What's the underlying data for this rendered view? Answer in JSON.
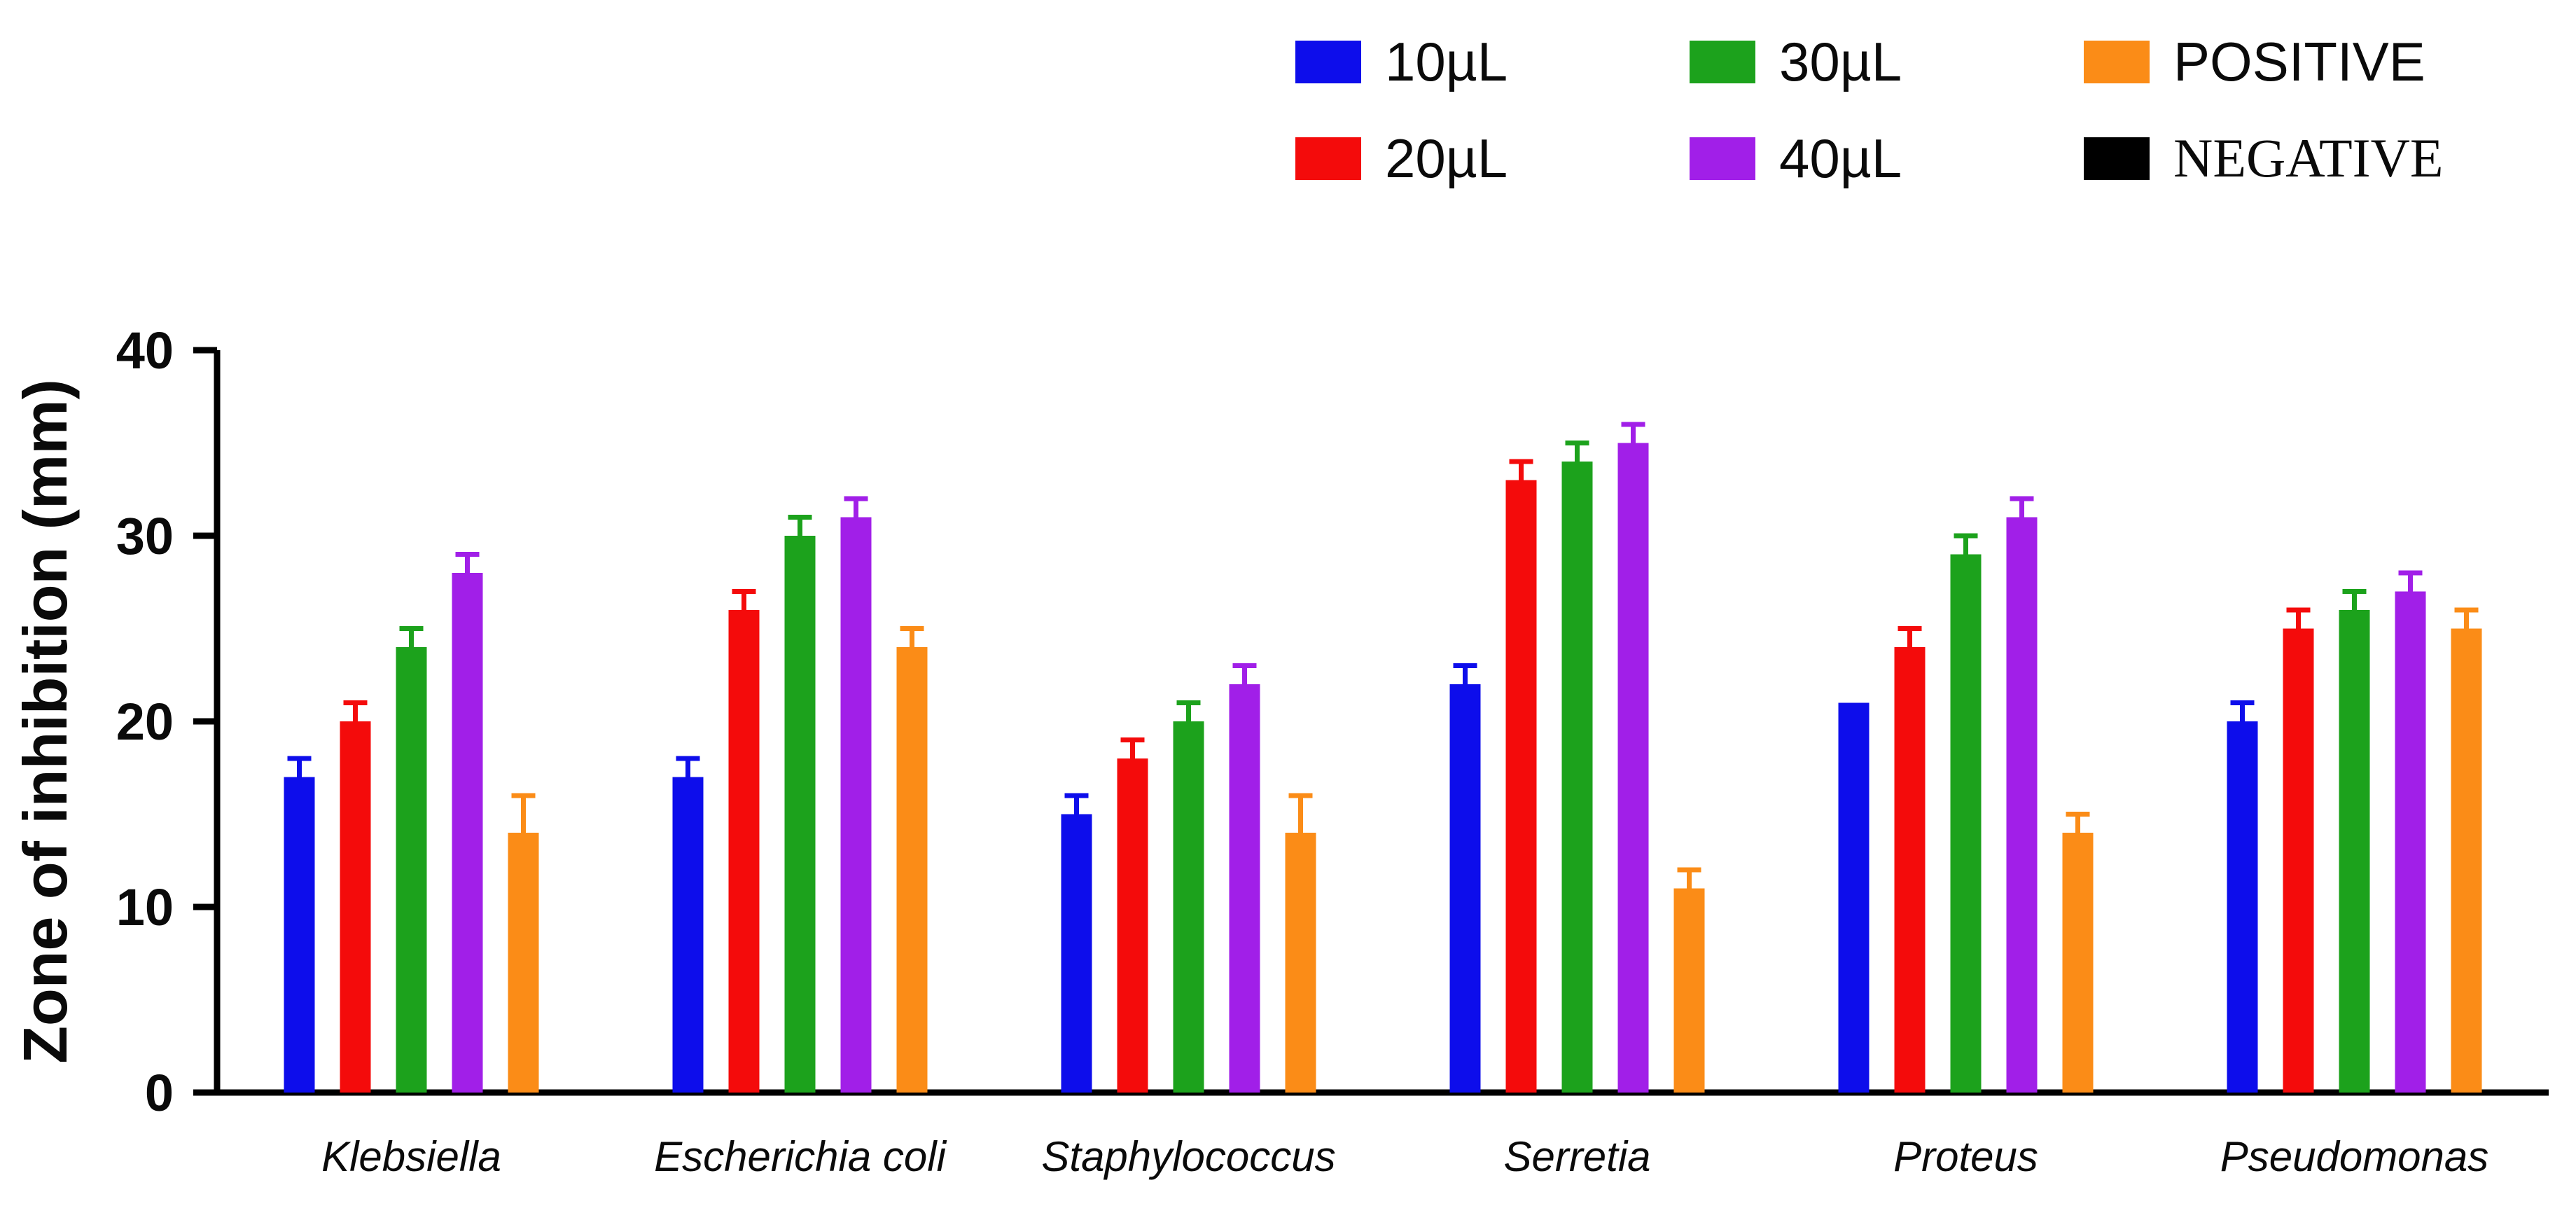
{
  "figure": {
    "background": "#ffffff"
  },
  "chart_data": {
    "type": "bar",
    "title": "",
    "xlabel": "",
    "ylabel": "Zone of inhibition (mm)",
    "ylim": [
      0,
      40
    ],
    "yticks": [
      0,
      10,
      20,
      30,
      40
    ],
    "grid": false,
    "legend_position": "top-right",
    "legend_rows": 2,
    "legend_order": [
      "10µL",
      "20µL",
      "30µL",
      "40µL",
      "POSITIVE",
      "NEGATIVE"
    ],
    "categories": [
      "Klebsiella",
      "Escherichia coli",
      "Staphylococcus",
      "Serretia",
      "Proteus",
      "Pseudomonas"
    ],
    "series": [
      {
        "name": "10µL",
        "color": "#0d0deb",
        "values": [
          17,
          17,
          15,
          22,
          21,
          20
        ],
        "errors_plus": [
          1,
          1,
          1,
          1,
          0,
          1
        ]
      },
      {
        "name": "20µL",
        "color": "#f40b0b",
        "values": [
          20,
          26,
          18,
          33,
          24,
          25
        ],
        "errors_plus": [
          1,
          1,
          1,
          1,
          1,
          1
        ]
      },
      {
        "name": "30µL",
        "color": "#1ca21c",
        "values": [
          24,
          30,
          20,
          34,
          29,
          26
        ],
        "errors_plus": [
          1,
          1,
          1,
          1,
          1,
          1
        ]
      },
      {
        "name": "40µL",
        "color": "#a11fe8",
        "values": [
          28,
          31,
          22,
          35,
          31,
          27
        ],
        "errors_plus": [
          1,
          1,
          1,
          1,
          1,
          1
        ]
      },
      {
        "name": "POSITIVE",
        "color": "#fb8c17",
        "values": [
          14,
          24,
          14,
          11,
          14,
          25
        ],
        "errors_plus": [
          2,
          1,
          2,
          1,
          1,
          1
        ]
      },
      {
        "name": "NEGATIVE",
        "color": "#000000",
        "values": [
          0,
          0,
          0,
          0,
          0,
          0
        ],
        "errors_plus": [
          0,
          0,
          0,
          0,
          0,
          0
        ]
      }
    ],
    "axis_color": "#000000",
    "text_color": "#0a0a0a"
  }
}
